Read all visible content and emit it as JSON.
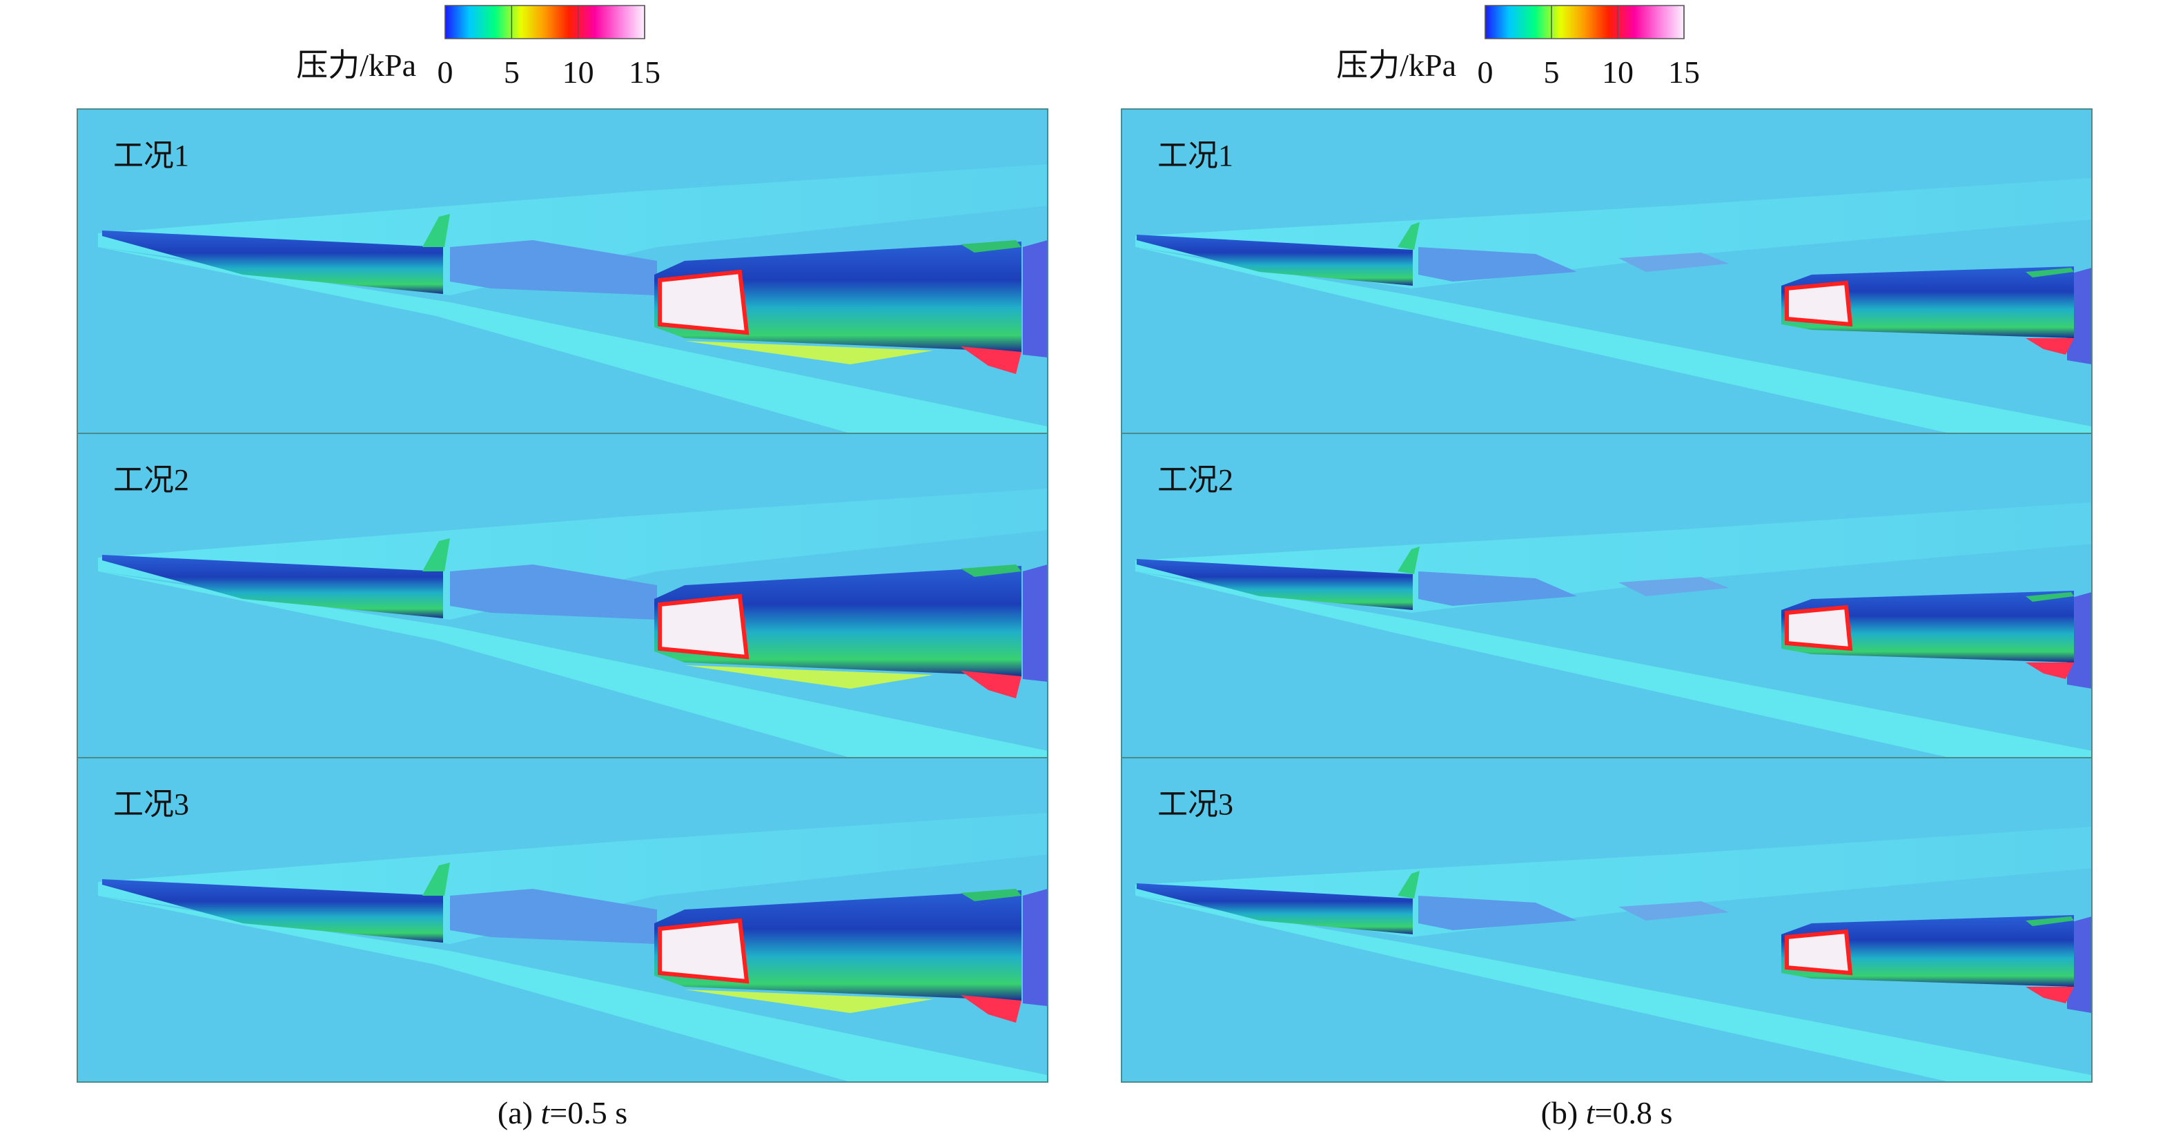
{
  "panels": [
    {
      "colorbar": {
        "label": "压力/kPa",
        "range": [
          0,
          15
        ],
        "ticks": [
          0,
          5,
          10,
          15
        ]
      },
      "cases": [
        "工况1",
        "工况2",
        "工况3"
      ],
      "caption": [
        "(a) ",
        "t",
        "=0.5 s"
      ]
    },
    {
      "colorbar": {
        "label": "压力/kPa",
        "range": [
          0,
          15
        ],
        "ticks": [
          0,
          5,
          10,
          15
        ]
      },
      "cases": [
        "工况1",
        "工况2",
        "工况3"
      ],
      "caption": [
        "(b) ",
        "t",
        "=0.8 s"
      ]
    }
  ]
}
